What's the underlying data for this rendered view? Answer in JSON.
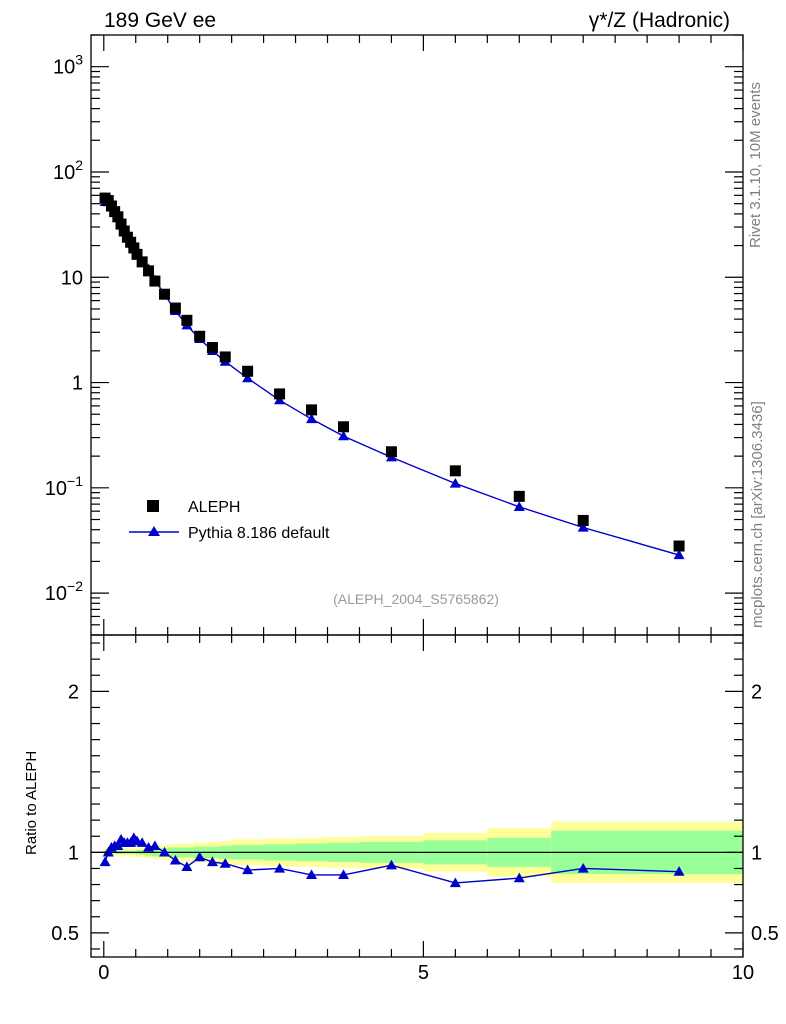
{
  "header": {
    "left": "189 GeV ee",
    "right": "γ*/Z (Hadronic)"
  },
  "side_labels": {
    "rivet": "Rivet 3.1.10,  10M events",
    "mcplots": "mcplots.cern.ch [arXiv:1306.3436]"
  },
  "annotation": "(ALEPH_2004_S5765862)",
  "ratio_ylabel": "Ratio to ALEPH",
  "colors": {
    "data": "#000000",
    "mc": "#0000cc",
    "band_yellow": "#ffff99",
    "band_green": "#99ff99"
  },
  "chart_data": [
    {
      "type": "scatter",
      "panel": "main",
      "yscale": "log",
      "xlim": [
        -0.2,
        10
      ],
      "ylim": [
        0.004,
        2000
      ],
      "ytick_labels": [
        "10^-2",
        "10^-1",
        "1",
        "10",
        "10^2",
        "10^3"
      ],
      "legend": {
        "placement": "lower-left",
        "entries": [
          "ALEPH",
          "Pythia 8.186 default"
        ]
      },
      "series": [
        {
          "name": "ALEPH",
          "marker": "square",
          "x": [
            0.02,
            0.07,
            0.12,
            0.17,
            0.22,
            0.27,
            0.32,
            0.37,
            0.42,
            0.47,
            0.52,
            0.6,
            0.7,
            0.8,
            0.95,
            1.12,
            1.3,
            1.5,
            1.7,
            1.9,
            2.25,
            2.75,
            3.25,
            3.75,
            4.5,
            5.5,
            6.5,
            7.5,
            9.0
          ],
          "values": [
            56.5,
            53.5,
            47.5,
            42.0,
            37.5,
            32.0,
            27.5,
            24.0,
            21.5,
            19.0,
            16.5,
            14.0,
            11.5,
            9.2,
            6.9,
            5.1,
            3.9,
            2.75,
            2.15,
            1.75,
            1.28,
            0.78,
            0.55,
            0.38,
            0.22,
            0.145,
            0.083,
            0.049,
            0.028
          ]
        },
        {
          "name": "Pythia 8.186 default",
          "marker": "triangle",
          "x": [
            0.02,
            0.07,
            0.12,
            0.17,
            0.22,
            0.27,
            0.32,
            0.37,
            0.42,
            0.47,
            0.52,
            0.6,
            0.7,
            0.8,
            0.95,
            1.12,
            1.3,
            1.5,
            1.7,
            1.9,
            2.25,
            2.75,
            3.25,
            3.75,
            4.5,
            5.5,
            6.5,
            7.5,
            9.0
          ],
          "values": [
            52.0,
            51.8,
            48.5,
            43.5,
            39.0,
            34.5,
            29.0,
            25.5,
            22.0,
            20.0,
            17.0,
            14.2,
            12.0,
            9.4,
            6.9,
            4.8,
            3.5,
            2.6,
            2.0,
            1.58,
            1.1,
            0.68,
            0.45,
            0.31,
            0.195,
            0.11,
            0.066,
            0.042,
            0.023
          ]
        }
      ]
    },
    {
      "type": "line",
      "panel": "ratio",
      "xlim": [
        -0.2,
        10
      ],
      "ylim": [
        0.35,
        2.35
      ],
      "xticks": [
        0,
        5,
        10
      ],
      "xtick_labels": [
        "0",
        "5",
        "10"
      ],
      "yticks": [
        0.5,
        1,
        2
      ],
      "ytick_labels": [
        "0.5",
        "1",
        "2"
      ],
      "ylabel": "Ratio to ALEPH",
      "reference_line": 1,
      "uncertainty_bands": {
        "edges": [
          0.0,
          0.05,
          0.1,
          0.15,
          0.2,
          0.25,
          0.3,
          0.35,
          0.4,
          0.45,
          0.5,
          0.55,
          0.65,
          0.75,
          0.85,
          1.0,
          1.2,
          1.4,
          1.6,
          1.8,
          2.0,
          2.5,
          3.0,
          3.5,
          4.0,
          5.0,
          6.0,
          7.0,
          10.0
        ],
        "green_halfwidth": [
          0.01,
          0.01,
          0.01,
          0.01,
          0.01,
          0.01,
          0.01,
          0.01,
          0.01,
          0.01,
          0.015,
          0.015,
          0.02,
          0.025,
          0.025,
          0.03,
          0.03,
          0.035,
          0.035,
          0.04,
          0.045,
          0.05,
          0.055,
          0.06,
          0.065,
          0.075,
          0.09,
          0.135
        ],
        "yellow_halfwidth": [
          0.02,
          0.02,
          0.02,
          0.02,
          0.02,
          0.02,
          0.025,
          0.025,
          0.025,
          0.025,
          0.03,
          0.03,
          0.035,
          0.04,
          0.045,
          0.05,
          0.055,
          0.06,
          0.065,
          0.07,
          0.08,
          0.085,
          0.09,
          0.095,
          0.1,
          0.12,
          0.15,
          0.19
        ]
      },
      "series": [
        {
          "name": "Pythia 8.186 default",
          "x": [
            0.02,
            0.07,
            0.12,
            0.17,
            0.22,
            0.27,
            0.32,
            0.37,
            0.42,
            0.47,
            0.52,
            0.6,
            0.7,
            0.8,
            0.95,
            1.12,
            1.3,
            1.5,
            1.7,
            1.9,
            2.25,
            2.75,
            3.25,
            3.75,
            4.5,
            5.5,
            6.5,
            7.5,
            9.0
          ],
          "values": [
            0.94,
            1.0,
            1.03,
            1.04,
            1.04,
            1.08,
            1.06,
            1.06,
            1.06,
            1.09,
            1.07,
            1.06,
            1.03,
            1.04,
            1.0,
            0.95,
            0.91,
            0.97,
            0.94,
            0.93,
            0.89,
            0.9,
            0.86,
            0.86,
            0.92,
            0.81,
            0.84,
            0.9,
            0.88
          ]
        }
      ]
    }
  ]
}
